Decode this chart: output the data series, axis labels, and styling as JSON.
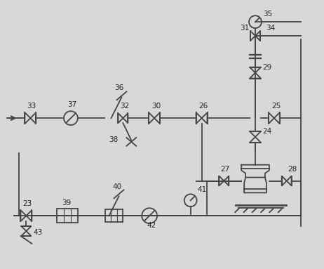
{
  "bg_color": "#d8d8d8",
  "line_color": "#444444",
  "text_color": "#222222",
  "fig_width": 4.62,
  "fig_height": 3.83,
  "dpi": 100
}
